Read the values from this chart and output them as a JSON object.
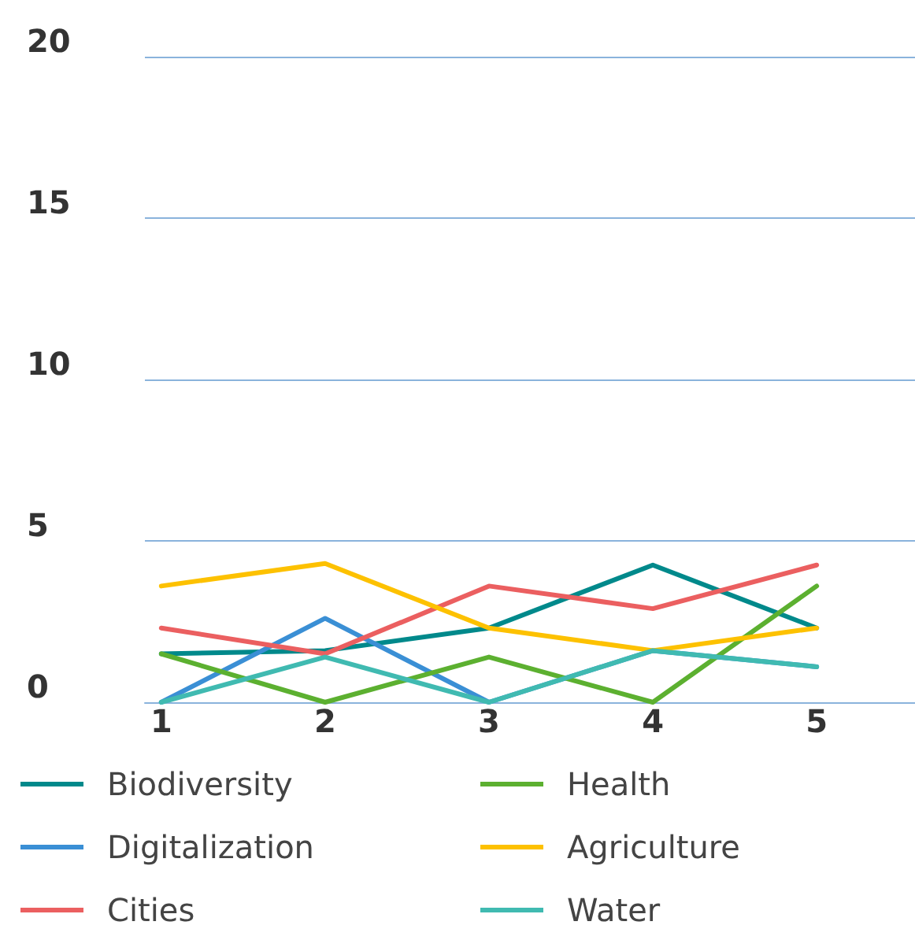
{
  "chart_data": {
    "type": "line",
    "x": [
      1,
      2,
      3,
      4,
      5
    ],
    "xlim": [
      0.9,
      5.6
    ],
    "xticks": [
      1,
      2,
      3,
      4,
      5
    ],
    "ylim": [
      0,
      20
    ],
    "yticks": [
      0,
      5,
      10,
      15,
      20
    ],
    "grid": "y",
    "legend": "bottom",
    "marker": "none",
    "line_style": "solid",
    "series": [
      {
        "name": "Biodiversity",
        "color": "#00898b",
        "values": [
          1.5,
          1.6,
          2.3,
          4.25,
          2.3
        ]
      },
      {
        "name": "Digitalization",
        "color": "#3a8fd5",
        "values": [
          0,
          2.6,
          0,
          1.6,
          1.1
        ]
      },
      {
        "name": "Cities",
        "color": "#eb5f60",
        "values": [
          2.3,
          1.5,
          3.6,
          2.9,
          4.25
        ]
      },
      {
        "name": "Health",
        "color": "#5cb030",
        "values": [
          1.5,
          0,
          1.4,
          0,
          3.6
        ]
      },
      {
        "name": "Agriculture",
        "color": "#fdc100",
        "values": [
          3.6,
          4.3,
          2.3,
          1.6,
          2.3
        ]
      },
      {
        "name": "Water",
        "color": "#40bab1",
        "values": [
          0,
          1.4,
          0,
          1.6,
          1.1
        ]
      }
    ]
  }
}
